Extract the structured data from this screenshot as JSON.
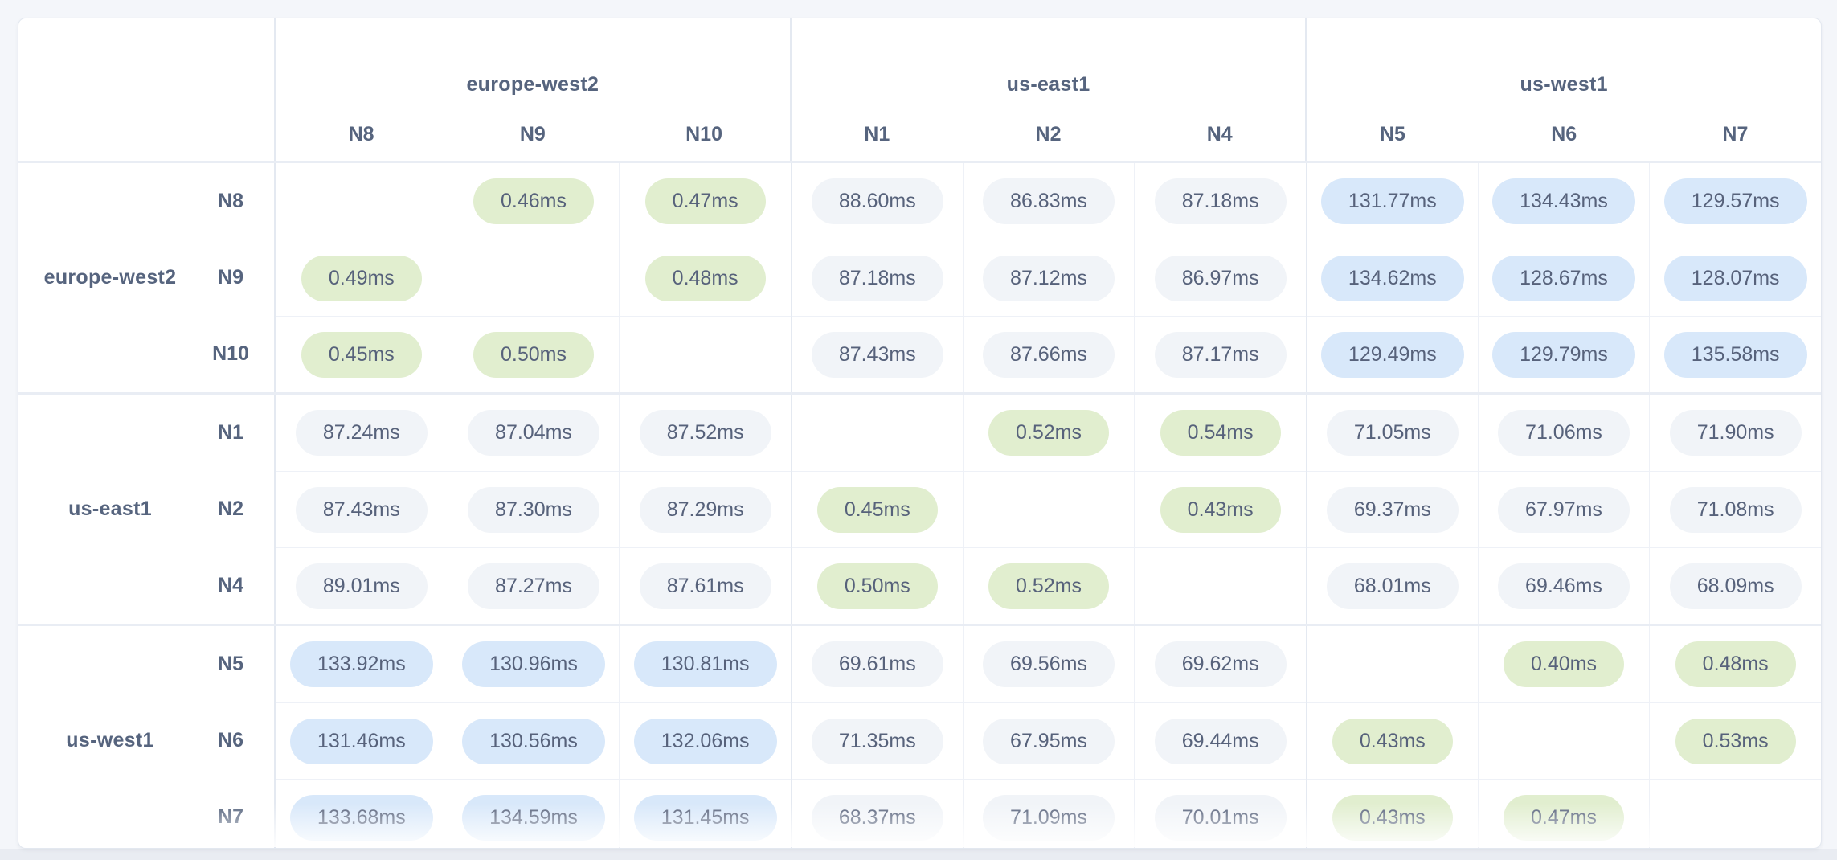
{
  "page": {
    "background": "#f4f6fa",
    "bottom_strip_color": "#e9ecf2",
    "card_background": "#ffffff"
  },
  "colors": {
    "pill_green": "#e1eecf",
    "pill_blue": "#d8e8fa",
    "pill_gray": "#f1f4f8",
    "pill_text": "#57627b",
    "label_text": "#56647e",
    "border_strong": "#e4e9f1",
    "border_light": "#eef1f7",
    "group_separator": "#e9edf4"
  },
  "chart_data": {
    "type": "heatmap",
    "description": "Node-to-node network latency matrix grouped by region",
    "unit": "ms",
    "column_groups": [
      {
        "region": "europe-west2",
        "nodes": [
          "N8",
          "N9",
          "N10"
        ]
      },
      {
        "region": "us-east1",
        "nodes": [
          "N1",
          "N2",
          "N4"
        ]
      },
      {
        "region": "us-west1",
        "nodes": [
          "N5",
          "N6",
          "N7"
        ]
      }
    ],
    "row_groups": [
      {
        "region": "europe-west2",
        "nodes": [
          "N8",
          "N9",
          "N10"
        ]
      },
      {
        "region": "us-east1",
        "nodes": [
          "N1",
          "N2",
          "N4"
        ]
      },
      {
        "region": "us-west1",
        "nodes": [
          "N5",
          "N6",
          "N7"
        ]
      }
    ],
    "columns": [
      "N8",
      "N9",
      "N10",
      "N1",
      "N2",
      "N4",
      "N5",
      "N6",
      "N7"
    ],
    "rows": [
      {
        "region": "europe-west2",
        "node": "N8",
        "values": [
          null,
          0.46,
          0.47,
          88.6,
          86.83,
          87.18,
          131.77,
          134.43,
          129.57
        ]
      },
      {
        "region": "europe-west2",
        "node": "N9",
        "values": [
          0.49,
          null,
          0.48,
          87.18,
          87.12,
          86.97,
          134.62,
          128.67,
          128.07
        ]
      },
      {
        "region": "europe-west2",
        "node": "N10",
        "values": [
          0.45,
          0.5,
          null,
          87.43,
          87.66,
          87.17,
          129.49,
          129.79,
          135.58
        ]
      },
      {
        "region": "us-east1",
        "node": "N1",
        "values": [
          87.24,
          87.04,
          87.52,
          null,
          0.52,
          0.54,
          71.05,
          71.06,
          71.9
        ]
      },
      {
        "region": "us-east1",
        "node": "N2",
        "values": [
          87.43,
          87.3,
          87.29,
          0.45,
          null,
          0.43,
          69.37,
          67.97,
          71.08
        ]
      },
      {
        "region": "us-east1",
        "node": "N4",
        "values": [
          89.01,
          87.27,
          87.61,
          0.5,
          0.52,
          null,
          68.01,
          69.46,
          68.09
        ]
      },
      {
        "region": "us-west1",
        "node": "N5",
        "values": [
          133.92,
          130.96,
          130.81,
          69.61,
          69.56,
          69.62,
          null,
          0.4,
          0.48
        ]
      },
      {
        "region": "us-west1",
        "node": "N6",
        "values": [
          131.46,
          130.56,
          132.06,
          71.35,
          67.95,
          69.44,
          0.43,
          null,
          0.53
        ]
      },
      {
        "region": "us-west1",
        "node": "N7",
        "values": [
          133.68,
          134.59,
          131.45,
          68.37,
          71.09,
          70.01,
          0.43,
          0.47,
          null
        ]
      }
    ]
  }
}
